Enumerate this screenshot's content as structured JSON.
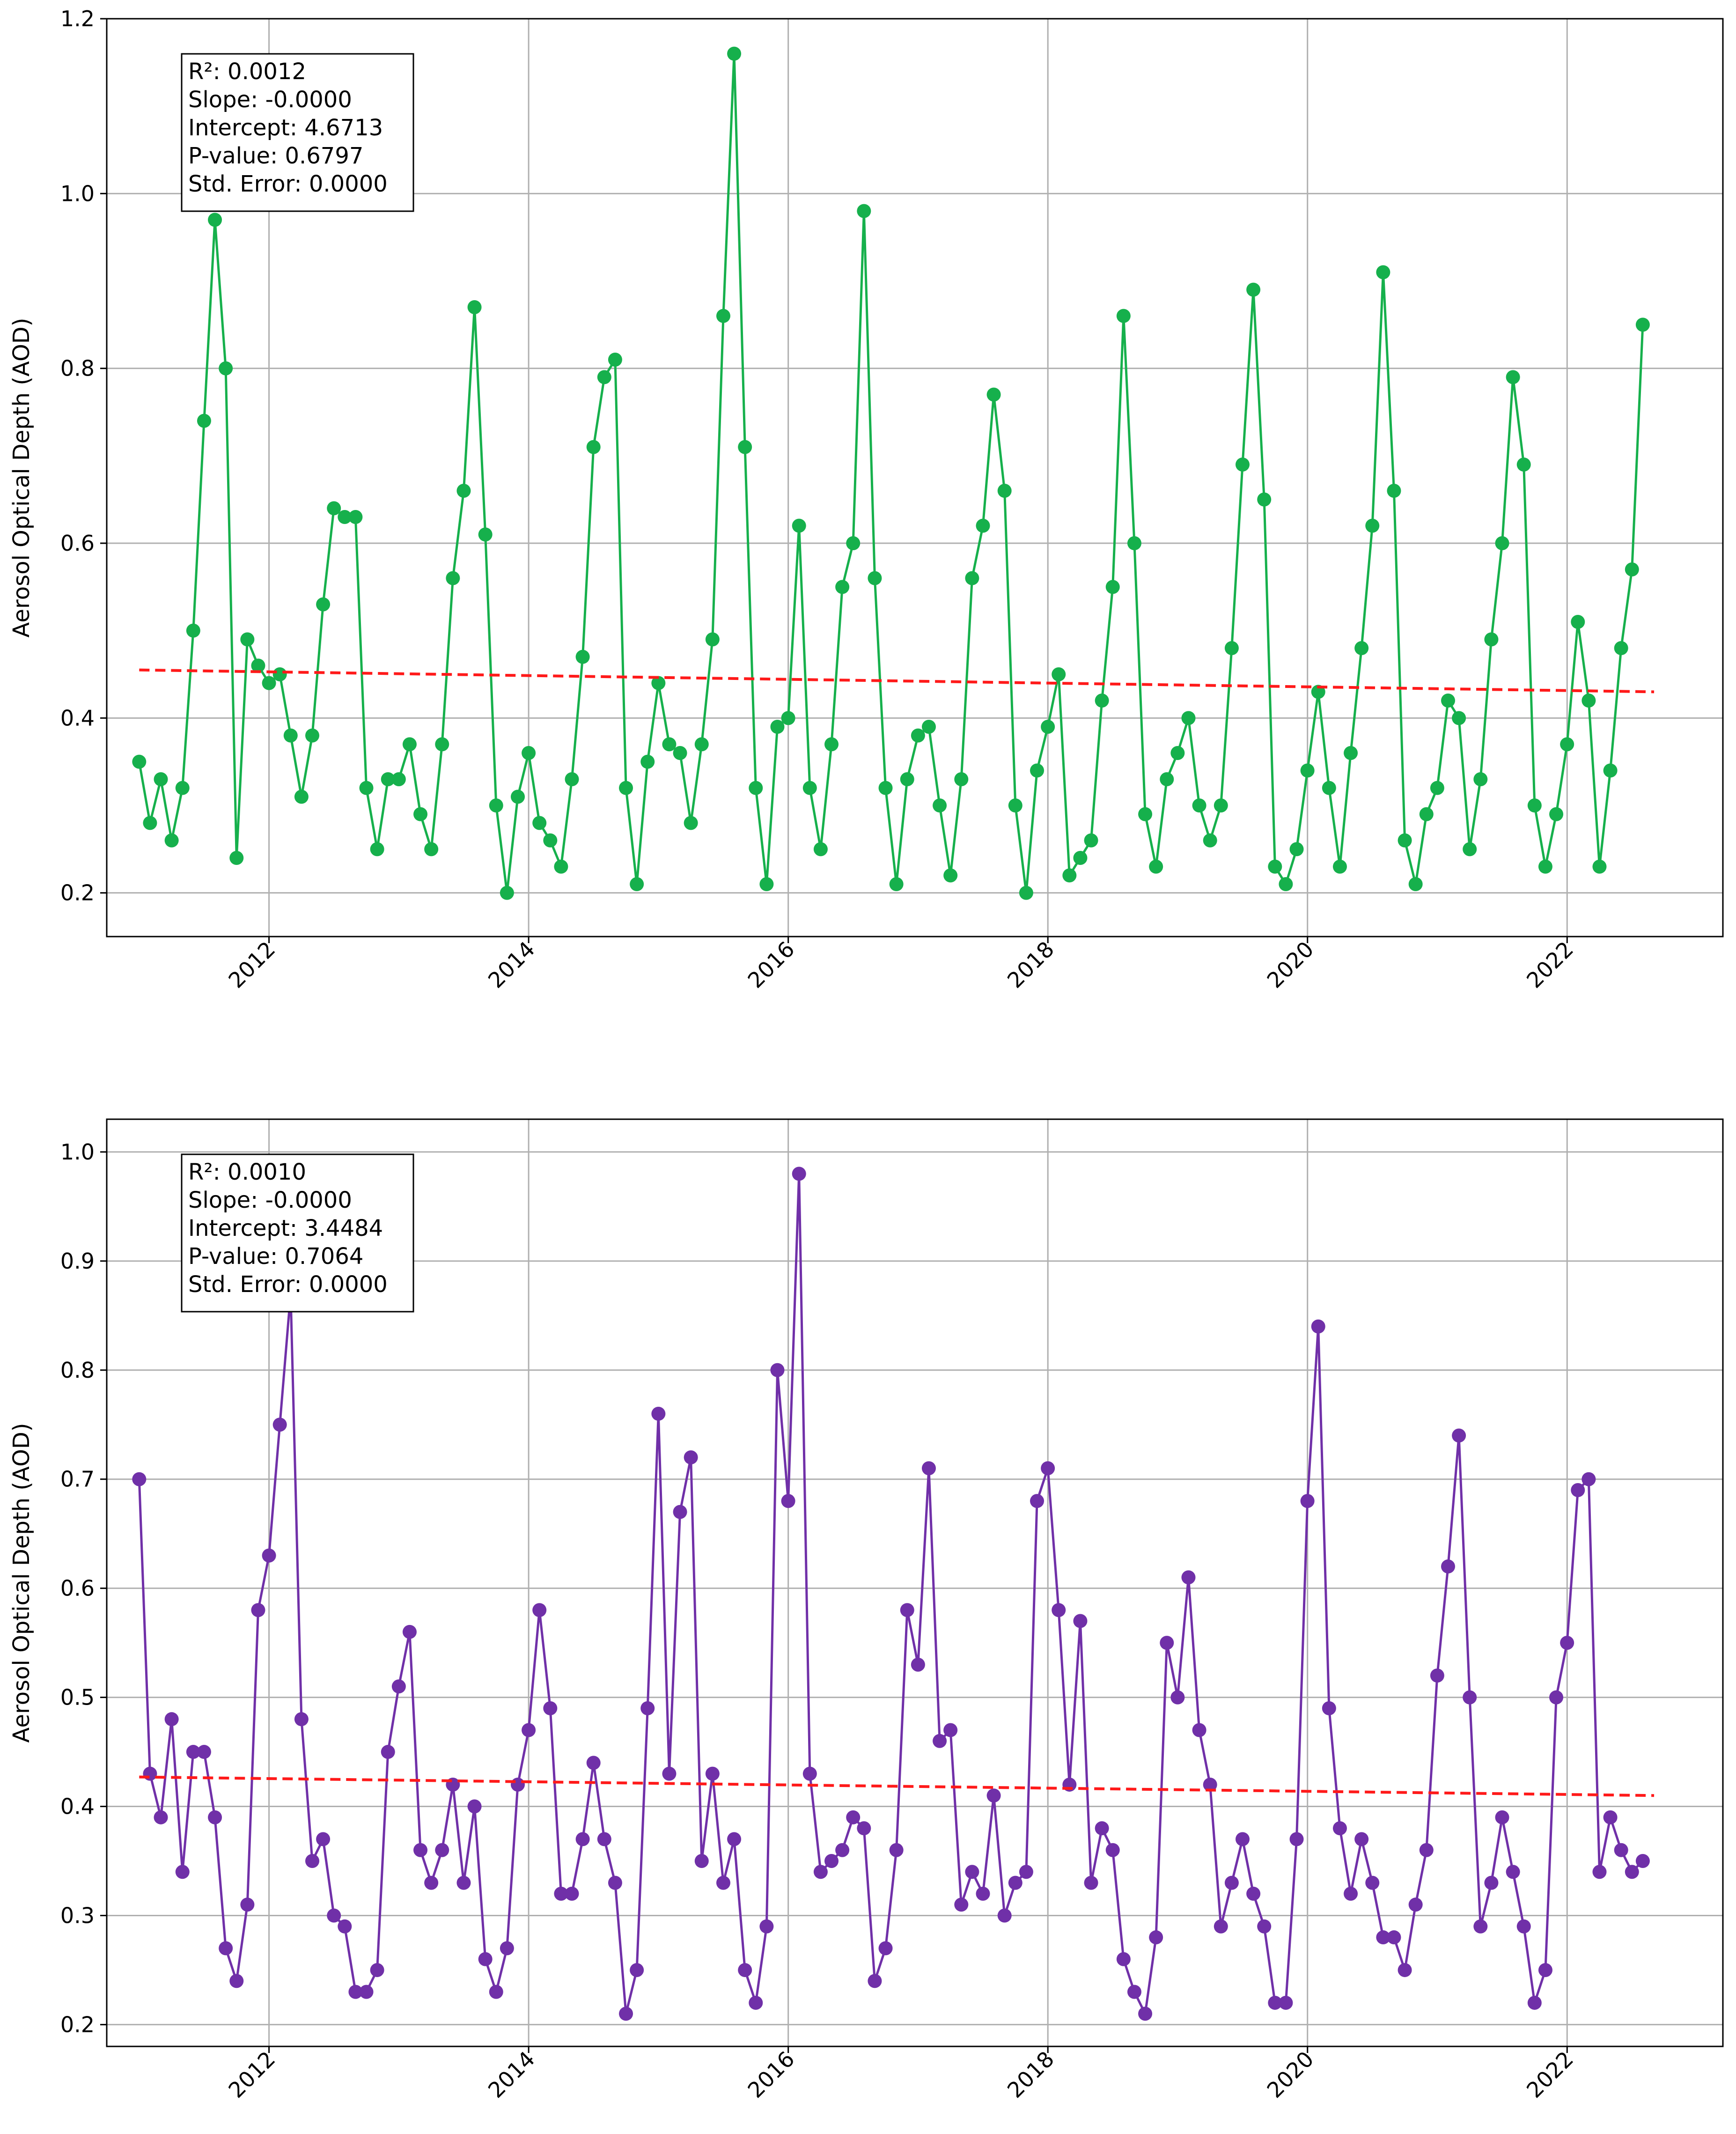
{
  "chart_data": [
    {
      "type": "line",
      "title": "",
      "xlabel": "",
      "ylabel": "Aerosol Optical Depth (AOD)",
      "ylim": [
        0.15,
        1.2
      ],
      "xlim": [
        2010.75,
        2023.2
      ],
      "y_ticks": [
        0.2,
        0.4,
        0.6,
        0.8,
        1.0,
        1.2
      ],
      "y_tick_labels": [
        "0.2",
        "0.4",
        "0.6",
        "0.8",
        "1.0",
        "1.2"
      ],
      "x_ticks": [
        2012,
        2014,
        2016,
        2018,
        2020,
        2022
      ],
      "x_tick_labels": [
        "2012",
        "2014",
        "2016",
        "2018",
        "2020",
        "2022"
      ],
      "grid": true,
      "series_color": "#16b04c",
      "trend_color": "#ff1a1a",
      "x_start": 2011.0,
      "x_step": 0.08333,
      "values": [
        0.35,
        0.28,
        0.33,
        0.26,
        0.32,
        0.5,
        0.74,
        0.97,
        0.8,
        0.24,
        0.49,
        0.46,
        0.44,
        0.45,
        0.38,
        0.31,
        0.38,
        0.53,
        0.64,
        0.63,
        0.63,
        0.32,
        0.25,
        0.33,
        0.33,
        0.37,
        0.29,
        0.25,
        0.37,
        0.56,
        0.66,
        0.87,
        0.61,
        0.3,
        0.2,
        0.31,
        0.36,
        0.28,
        0.26,
        0.23,
        0.33,
        0.47,
        0.71,
        0.79,
        0.81,
        0.32,
        0.21,
        0.35,
        0.44,
        0.37,
        0.36,
        0.28,
        0.37,
        0.49,
        0.86,
        1.16,
        0.71,
        0.32,
        0.21,
        0.39,
        0.4,
        0.62,
        0.32,
        0.25,
        0.37,
        0.55,
        0.6,
        0.98,
        0.56,
        0.32,
        0.21,
        0.33,
        0.38,
        0.39,
        0.3,
        0.22,
        0.33,
        0.56,
        0.62,
        0.77,
        0.66,
        0.3,
        0.2,
        0.34,
        0.39,
        0.45,
        0.22,
        0.24,
        0.26,
        0.42,
        0.55,
        0.86,
        0.6,
        0.29,
        0.23,
        0.33,
        0.36,
        0.4,
        0.3,
        0.26,
        0.3,
        0.48,
        0.69,
        0.89,
        0.65,
        0.23,
        0.21,
        0.25,
        0.34,
        0.43,
        0.32,
        0.23,
        0.36,
        0.48,
        0.62,
        0.91,
        0.66,
        0.26,
        0.21,
        0.29,
        0.32,
        0.42,
        0.4,
        0.25,
        0.33,
        0.49,
        0.6,
        0.79,
        0.69,
        0.3,
        0.23,
        0.29,
        0.37,
        0.51,
        0.42,
        0.23,
        0.34,
        0.48,
        0.57,
        0.85
      ],
      "trend": {
        "x": [
          2011.0,
          2022.67
        ],
        "y": [
          0.455,
          0.43
        ]
      },
      "stats": [
        "R²: 0.0012",
        "Slope: -0.0000",
        "Intercept: 4.6713",
        "P-value: 0.6797",
        "Std. Error: 0.0000"
      ]
    },
    {
      "type": "line",
      "title": "",
      "xlabel": "",
      "ylabel": "Aerosol Optical Depth (AOD)",
      "ylim": [
        0.18,
        1.03
      ],
      "xlim": [
        2010.75,
        2023.2
      ],
      "y_ticks": [
        0.2,
        0.3,
        0.4,
        0.5,
        0.6,
        0.7,
        0.8,
        0.9,
        1.0
      ],
      "y_tick_labels": [
        "0.2",
        "0.3",
        "0.4",
        "0.5",
        "0.6",
        "0.7",
        "0.8",
        "0.9",
        "1.0"
      ],
      "x_ticks": [
        2012,
        2014,
        2016,
        2018,
        2020,
        2022
      ],
      "x_tick_labels": [
        "2012",
        "2014",
        "2016",
        "2018",
        "2020",
        "2022"
      ],
      "grid": true,
      "series_color": "#7030a8",
      "trend_color": "#ff1a1a",
      "x_start": 2011.0,
      "x_step": 0.08333,
      "values": [
        0.7,
        0.43,
        0.39,
        0.48,
        0.34,
        0.45,
        0.45,
        0.39,
        0.27,
        0.24,
        0.31,
        0.58,
        0.63,
        0.75,
        0.87,
        0.48,
        0.35,
        0.37,
        0.3,
        0.29,
        0.23,
        0.23,
        0.25,
        0.45,
        0.51,
        0.56,
        0.36,
        0.33,
        0.36,
        0.42,
        0.33,
        0.4,
        0.26,
        0.23,
        0.27,
        0.42,
        0.47,
        0.58,
        0.49,
        0.32,
        0.32,
        0.37,
        0.44,
        0.37,
        0.33,
        0.21,
        0.25,
        0.49,
        0.76,
        0.43,
        0.67,
        0.72,
        0.35,
        0.43,
        0.33,
        0.37,
        0.25,
        0.22,
        0.29,
        0.8,
        0.68,
        0.98,
        0.43,
        0.34,
        0.35,
        0.36,
        0.39,
        0.38,
        0.24,
        0.27,
        0.36,
        0.58,
        0.53,
        0.71,
        0.46,
        0.47,
        0.31,
        0.34,
        0.32,
        0.41,
        0.3,
        0.33,
        0.34,
        0.68,
        0.71,
        0.58,
        0.42,
        0.57,
        0.33,
        0.38,
        0.36,
        0.26,
        0.23,
        0.21,
        0.28,
        0.55,
        0.5,
        0.61,
        0.47,
        0.42,
        0.29,
        0.33,
        0.37,
        0.32,
        0.29,
        0.22,
        0.22,
        0.37,
        0.68,
        0.84,
        0.49,
        0.38,
        0.32,
        0.37,
        0.33,
        0.28,
        0.28,
        0.25,
        0.31,
        0.36,
        0.52,
        0.62,
        0.74,
        0.5,
        0.29,
        0.33,
        0.39,
        0.34,
        0.29,
        0.22,
        0.25,
        0.5,
        0.55,
        0.69,
        0.7,
        0.34,
        0.39,
        0.36,
        0.34,
        0.35
      ],
      "trend": {
        "x": [
          2011.0,
          2022.67
        ],
        "y": [
          0.427,
          0.41
        ]
      },
      "stats": [
        "R²: 0.0010",
        "Slope: -0.0000",
        "Intercept: 3.4484",
        "P-value: 0.7064",
        "Std. Error: 0.0000"
      ]
    }
  ]
}
